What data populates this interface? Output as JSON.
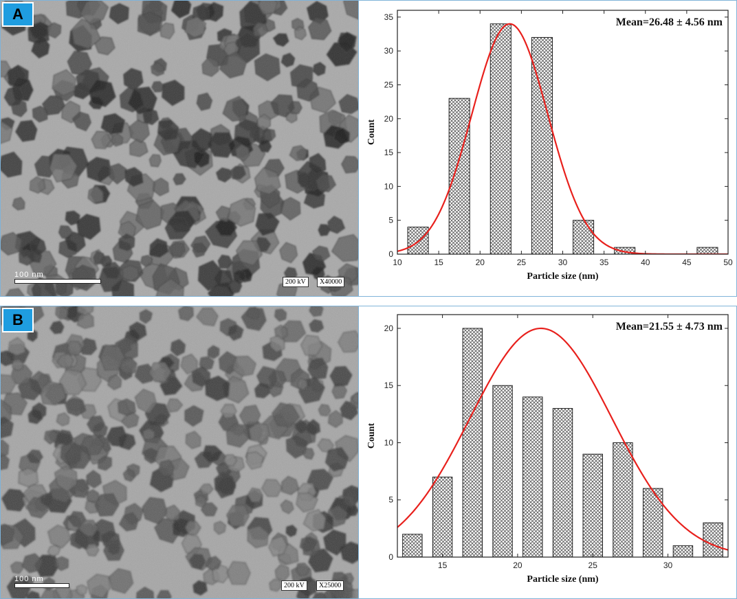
{
  "panels": [
    {
      "label": "A",
      "scalebar": "100 nm",
      "voltage": "200 kV",
      "magnification": "X40000",
      "chart_data": {
        "type": "bar",
        "annotation": "Mean=26.48 ± 4.56 nm",
        "xlabel": "Particle size (nm)",
        "ylabel": "Count",
        "xlim": [
          10,
          50
        ],
        "ylim": [
          0,
          36
        ],
        "xticks": [
          10,
          15,
          20,
          25,
          30,
          35,
          40,
          45,
          50
        ],
        "yticks": [
          0,
          5,
          10,
          15,
          20,
          25,
          30,
          35
        ],
        "bar_width": 2.5,
        "x": [
          12.5,
          17.5,
          22.5,
          27.5,
          32.5,
          37.5,
          47.5
        ],
        "values": [
          4,
          23,
          34,
          32,
          5,
          1,
          1
        ],
        "fit": {
          "type": "gaussian",
          "peak_x": 23.6,
          "peak_y": 34,
          "sigma": 4.6,
          "color": "#e8201c"
        },
        "grid": false
      }
    },
    {
      "label": "B",
      "scalebar": "100 nm",
      "voltage": "200 kV",
      "magnification": "X25000",
      "chart_data": {
        "type": "bar",
        "annotation": "Mean=21.55 ± 4.73 nm",
        "xlabel": "Particle size (nm)",
        "ylabel": "Count",
        "xlim": [
          12,
          34
        ],
        "ylim": [
          0,
          21.2
        ],
        "xticks": [
          15,
          20,
          25,
          30
        ],
        "yticks": [
          0,
          5,
          10,
          15,
          20
        ],
        "bar_width": 1.3,
        "x": [
          13,
          15,
          17,
          19,
          21,
          23,
          25,
          27,
          29,
          31,
          33
        ],
        "values": [
          2,
          7,
          20,
          15,
          14,
          13,
          9,
          10,
          6,
          1,
          3
        ],
        "fit": {
          "type": "gaussian",
          "peak_x": 21.55,
          "peak_y": 20,
          "sigma": 4.73,
          "color": "#e8201c"
        },
        "grid": false
      }
    }
  ]
}
